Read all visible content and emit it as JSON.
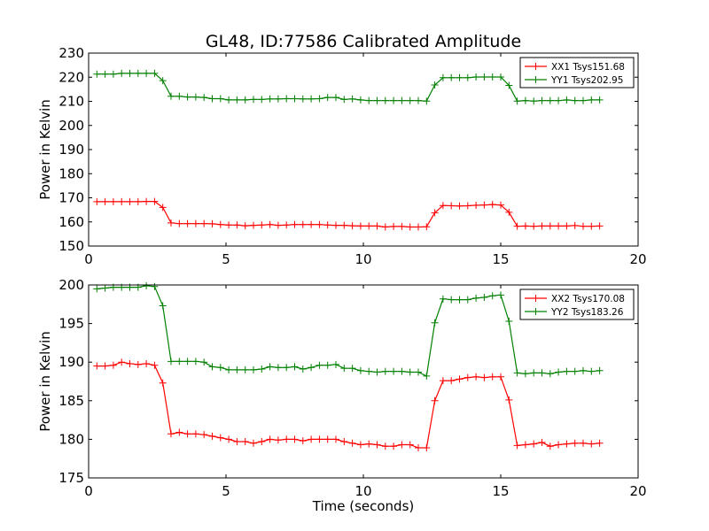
{
  "title": "GL48, ID:77586 Calibrated Amplitude",
  "chart_data": [
    {
      "type": "line",
      "ylabel": "Power in Kelvin",
      "xlabel": "",
      "xlim": [
        0,
        20
      ],
      "ylim": [
        150,
        230
      ],
      "xticks": [
        0,
        5,
        10,
        15,
        20
      ],
      "yticks": [
        150,
        160,
        170,
        180,
        190,
        200,
        210,
        220,
        230
      ],
      "legend_position": "top-right",
      "series": [
        {
          "name": "XX1 Tsys151.68",
          "color": "#ff0000",
          "points": [
            [
              0.3,
              168.4
            ],
            [
              0.6,
              168.4
            ],
            [
              0.9,
              168.4
            ],
            [
              1.2,
              168.4
            ],
            [
              1.5,
              168.4
            ],
            [
              1.8,
              168.4
            ],
            [
              2.1,
              168.5
            ],
            [
              2.4,
              168.5
            ],
            [
              2.7,
              166.0
            ],
            [
              3.0,
              159.6
            ],
            [
              3.3,
              159.3
            ],
            [
              3.6,
              159.3
            ],
            [
              3.9,
              159.3
            ],
            [
              4.2,
              159.3
            ],
            [
              4.5,
              159.2
            ],
            [
              4.8,
              158.9
            ],
            [
              5.1,
              158.7
            ],
            [
              5.4,
              158.7
            ],
            [
              5.7,
              158.4
            ],
            [
              6.0,
              158.6
            ],
            [
              6.3,
              158.7
            ],
            [
              6.6,
              158.9
            ],
            [
              6.9,
              158.6
            ],
            [
              7.2,
              158.7
            ],
            [
              7.5,
              158.9
            ],
            [
              7.8,
              158.9
            ],
            [
              8.1,
              158.9
            ],
            [
              8.4,
              158.9
            ],
            [
              8.7,
              158.7
            ],
            [
              9.0,
              158.6
            ],
            [
              9.3,
              158.6
            ],
            [
              9.6,
              158.4
            ],
            [
              9.9,
              158.3
            ],
            [
              10.2,
              158.3
            ],
            [
              10.5,
              158.3
            ],
            [
              10.8,
              157.9
            ],
            [
              11.1,
              158.1
            ],
            [
              11.4,
              158.1
            ],
            [
              11.7,
              157.9
            ],
            [
              12.0,
              157.9
            ],
            [
              12.3,
              158.0
            ],
            [
              12.6,
              163.8
            ],
            [
              12.9,
              166.8
            ],
            [
              13.2,
              166.7
            ],
            [
              13.5,
              166.6
            ],
            [
              13.8,
              166.7
            ],
            [
              14.1,
              166.9
            ],
            [
              14.4,
              167.0
            ],
            [
              14.7,
              167.2
            ],
            [
              15.0,
              167.0
            ],
            [
              15.3,
              164.0
            ],
            [
              15.6,
              158.2
            ],
            [
              15.9,
              158.3
            ],
            [
              16.2,
              158.2
            ],
            [
              16.5,
              158.3
            ],
            [
              16.8,
              158.3
            ],
            [
              17.1,
              158.3
            ],
            [
              17.4,
              158.3
            ],
            [
              17.7,
              158.5
            ],
            [
              18.0,
              158.2
            ],
            [
              18.3,
              158.2
            ],
            [
              18.6,
              158.3
            ]
          ]
        },
        {
          "name": "YY1 Tsys202.95",
          "color": "#008000",
          "points": [
            [
              0.3,
              221.3
            ],
            [
              0.6,
              221.3
            ],
            [
              0.9,
              221.3
            ],
            [
              1.2,
              221.6
            ],
            [
              1.5,
              221.6
            ],
            [
              1.8,
              221.6
            ],
            [
              2.1,
              221.6
            ],
            [
              2.4,
              221.6
            ],
            [
              2.7,
              218.6
            ],
            [
              3.0,
              212.1
            ],
            [
              3.3,
              212.1
            ],
            [
              3.6,
              211.8
            ],
            [
              3.9,
              211.8
            ],
            [
              4.2,
              211.6
            ],
            [
              4.5,
              211.1
            ],
            [
              4.8,
              211.1
            ],
            [
              5.1,
              210.6
            ],
            [
              5.4,
              210.6
            ],
            [
              5.7,
              210.6
            ],
            [
              6.0,
              210.8
            ],
            [
              6.3,
              210.8
            ],
            [
              6.6,
              211.0
            ],
            [
              6.9,
              211.0
            ],
            [
              7.2,
              211.1
            ],
            [
              7.5,
              211.1
            ],
            [
              7.8,
              211.0
            ],
            [
              8.1,
              211.0
            ],
            [
              8.4,
              211.1
            ],
            [
              8.7,
              211.6
            ],
            [
              9.0,
              211.6
            ],
            [
              9.3,
              210.8
            ],
            [
              9.6,
              211.0
            ],
            [
              9.9,
              210.6
            ],
            [
              10.2,
              210.3
            ],
            [
              10.5,
              210.3
            ],
            [
              10.8,
              210.3
            ],
            [
              11.1,
              210.3
            ],
            [
              11.4,
              210.3
            ],
            [
              11.7,
              210.3
            ],
            [
              12.0,
              210.3
            ],
            [
              12.3,
              210.1
            ],
            [
              12.6,
              216.8
            ],
            [
              12.9,
              219.8
            ],
            [
              13.2,
              219.8
            ],
            [
              13.5,
              219.8
            ],
            [
              13.8,
              219.8
            ],
            [
              14.1,
              220.1
            ],
            [
              14.4,
              220.1
            ],
            [
              14.7,
              220.1
            ],
            [
              15.0,
              220.1
            ],
            [
              15.3,
              216.6
            ],
            [
              15.6,
              210.1
            ],
            [
              15.9,
              210.3
            ],
            [
              16.2,
              210.1
            ],
            [
              16.5,
              210.3
            ],
            [
              16.8,
              210.3
            ],
            [
              17.1,
              210.3
            ],
            [
              17.4,
              210.6
            ],
            [
              17.7,
              210.3
            ],
            [
              18.0,
              210.3
            ],
            [
              18.3,
              210.6
            ],
            [
              18.6,
              210.6
            ]
          ]
        }
      ]
    },
    {
      "type": "line",
      "ylabel": "Power in Kelvin",
      "xlabel": "Time (seconds)",
      "xlim": [
        0,
        20
      ],
      "ylim": [
        175,
        200
      ],
      "xticks": [
        0,
        5,
        10,
        15,
        20
      ],
      "yticks": [
        175,
        180,
        185,
        190,
        195,
        200
      ],
      "legend_position": "top-right",
      "series": [
        {
          "name": "XX2 Tsys170.08",
          "color": "#ff0000",
          "points": [
            [
              0.3,
              189.5
            ],
            [
              0.6,
              189.5
            ],
            [
              0.9,
              189.6
            ],
            [
              1.2,
              190.0
            ],
            [
              1.5,
              189.8
            ],
            [
              1.8,
              189.7
            ],
            [
              2.1,
              189.8
            ],
            [
              2.4,
              189.6
            ],
            [
              2.7,
              187.3
            ],
            [
              3.0,
              180.7
            ],
            [
              3.3,
              180.9
            ],
            [
              3.6,
              180.7
            ],
            [
              3.9,
              180.7
            ],
            [
              4.2,
              180.6
            ],
            [
              4.5,
              180.4
            ],
            [
              4.8,
              180.2
            ],
            [
              5.1,
              180.0
            ],
            [
              5.4,
              179.7
            ],
            [
              5.7,
              179.7
            ],
            [
              6.0,
              179.5
            ],
            [
              6.3,
              179.7
            ],
            [
              6.6,
              180.0
            ],
            [
              6.9,
              179.9
            ],
            [
              7.2,
              180.0
            ],
            [
              7.5,
              180.0
            ],
            [
              7.8,
              179.8
            ],
            [
              8.1,
              180.0
            ],
            [
              8.4,
              180.0
            ],
            [
              8.7,
              180.0
            ],
            [
              9.0,
              180.0
            ],
            [
              9.3,
              179.7
            ],
            [
              9.6,
              179.5
            ],
            [
              9.9,
              179.3
            ],
            [
              10.2,
              179.4
            ],
            [
              10.5,
              179.3
            ],
            [
              10.8,
              179.1
            ],
            [
              11.1,
              179.1
            ],
            [
              11.4,
              179.3
            ],
            [
              11.7,
              179.3
            ],
            [
              12.0,
              178.9
            ],
            [
              12.3,
              178.9
            ],
            [
              12.6,
              185.0
            ],
            [
              12.9,
              187.6
            ],
            [
              13.2,
              187.6
            ],
            [
              13.5,
              187.8
            ],
            [
              13.8,
              188.0
            ],
            [
              14.1,
              188.1
            ],
            [
              14.4,
              188.0
            ],
            [
              14.7,
              188.1
            ],
            [
              15.0,
              188.1
            ],
            [
              15.3,
              185.1
            ],
            [
              15.6,
              179.2
            ],
            [
              15.9,
              179.3
            ],
            [
              16.2,
              179.4
            ],
            [
              16.5,
              179.6
            ],
            [
              16.8,
              179.1
            ],
            [
              17.1,
              179.3
            ],
            [
              17.4,
              179.4
            ],
            [
              17.7,
              179.5
            ],
            [
              18.0,
              179.5
            ],
            [
              18.3,
              179.4
            ],
            [
              18.6,
              179.5
            ]
          ]
        },
        {
          "name": "YY2 Tsys183.26",
          "color": "#008000",
          "points": [
            [
              0.3,
              199.5
            ],
            [
              0.6,
              199.6
            ],
            [
              0.9,
              199.7
            ],
            [
              1.2,
              199.7
            ],
            [
              1.5,
              199.7
            ],
            [
              1.8,
              199.7
            ],
            [
              2.1,
              199.9
            ],
            [
              2.4,
              199.8
            ],
            [
              2.7,
              197.3
            ],
            [
              3.0,
              190.1
            ],
            [
              3.3,
              190.1
            ],
            [
              3.6,
              190.1
            ],
            [
              3.9,
              190.1
            ],
            [
              4.2,
              190.0
            ],
            [
              4.5,
              189.4
            ],
            [
              4.8,
              189.3
            ],
            [
              5.1,
              189.0
            ],
            [
              5.4,
              189.0
            ],
            [
              5.7,
              189.0
            ],
            [
              6.0,
              189.0
            ],
            [
              6.3,
              189.1
            ],
            [
              6.6,
              189.4
            ],
            [
              6.9,
              189.3
            ],
            [
              7.2,
              189.3
            ],
            [
              7.5,
              189.4
            ],
            [
              7.8,
              189.1
            ],
            [
              8.1,
              189.3
            ],
            [
              8.4,
              189.6
            ],
            [
              8.7,
              189.6
            ],
            [
              9.0,
              189.7
            ],
            [
              9.3,
              189.2
            ],
            [
              9.6,
              189.2
            ],
            [
              9.9,
              188.9
            ],
            [
              10.2,
              188.8
            ],
            [
              10.5,
              188.7
            ],
            [
              10.8,
              188.8
            ],
            [
              11.1,
              188.8
            ],
            [
              11.4,
              188.8
            ],
            [
              11.7,
              188.7
            ],
            [
              12.0,
              188.7
            ],
            [
              12.3,
              188.2
            ],
            [
              12.6,
              195.1
            ],
            [
              12.9,
              198.2
            ],
            [
              13.2,
              198.1
            ],
            [
              13.5,
              198.1
            ],
            [
              13.8,
              198.1
            ],
            [
              14.1,
              198.3
            ],
            [
              14.4,
              198.4
            ],
            [
              14.7,
              198.6
            ],
            [
              15.0,
              198.7
            ],
            [
              15.3,
              195.3
            ],
            [
              15.6,
              188.6
            ],
            [
              15.9,
              188.5
            ],
            [
              16.2,
              188.6
            ],
            [
              16.5,
              188.6
            ],
            [
              16.8,
              188.5
            ],
            [
              17.1,
              188.7
            ],
            [
              17.4,
              188.8
            ],
            [
              17.7,
              188.8
            ],
            [
              18.0,
              188.9
            ],
            [
              18.3,
              188.8
            ],
            [
              18.6,
              188.9
            ]
          ]
        }
      ]
    }
  ]
}
